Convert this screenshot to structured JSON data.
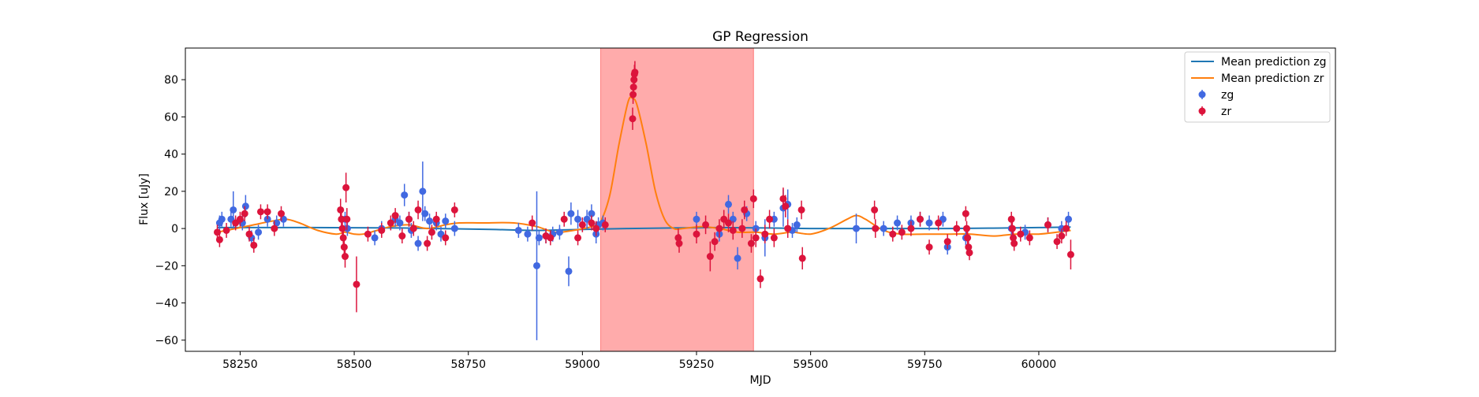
{
  "chart_data": {
    "type": "scatter",
    "title": "GP Regression",
    "xlabel": "MJD",
    "ylabel": "Flux [uJy]",
    "xlim": [
      58130,
      60650
    ],
    "ylim": [
      -66,
      97
    ],
    "xticks": [
      58250,
      58500,
      58750,
      59000,
      59250,
      59500,
      59750,
      60000
    ],
    "yticks": [
      -60,
      -40,
      -20,
      0,
      20,
      40,
      60,
      80
    ],
    "grid": false,
    "legend_position": "top-right",
    "shaded_region": {
      "x_start": 59040,
      "x_end": 59375,
      "color": "#ff0000",
      "alpha": 0.33
    },
    "lines": [
      {
        "name": "Mean prediction zg",
        "color": "#1f77b4",
        "x": [
          58200,
          58400,
          58600,
          58800,
          58900,
          59000,
          59100,
          59200,
          59300,
          59400,
          59500,
          59600,
          59700,
          59800,
          59900,
          60000,
          60070
        ],
        "y": [
          0.5,
          0.5,
          0.3,
          -0.5,
          -1.0,
          -0.5,
          0.0,
          0.3,
          0.5,
          0.3,
          0.0,
          0.0,
          0.0,
          0.0,
          0.2,
          0.5,
          0.8
        ]
      },
      {
        "name": "Mean prediction zr",
        "color": "#ff7f0e",
        "x": [
          58200,
          58240,
          58280,
          58320,
          58350,
          58380,
          58420,
          58460,
          58480,
          58500,
          58520,
          58550,
          58580,
          58620,
          58660,
          58700,
          58730,
          58780,
          58850,
          58900,
          58940,
          58980,
          59020,
          59040,
          59060,
          59080,
          59100,
          59110,
          59120,
          59140,
          59160,
          59180,
          59200,
          59220,
          59260,
          59300,
          59340,
          59380,
          59420,
          59460,
          59500,
          59540,
          59580,
          59600,
          59620,
          59660,
          59700,
          59750,
          59800,
          59850,
          59900,
          59950,
          60000,
          60040,
          60070
        ],
        "y": [
          -2,
          0,
          2,
          4,
          5,
          3,
          -1,
          -3,
          -2,
          -3,
          -3,
          -1,
          1,
          2,
          0,
          2,
          3,
          3,
          3,
          1,
          -2,
          -1,
          1,
          4,
          18,
          45,
          68,
          70,
          66,
          45,
          20,
          5,
          0,
          0,
          1,
          0,
          -2,
          -2,
          -3,
          -2,
          -3,
          0,
          5,
          7,
          5,
          -1,
          -3,
          -3,
          -3,
          -3,
          -4,
          -3,
          -3,
          -2,
          -1
        ]
      }
    ],
    "series": [
      {
        "name": "zg",
        "color": "#4169e1",
        "x": [
          58205,
          58210,
          58230,
          58235,
          58255,
          58262,
          58275,
          58290,
          58310,
          58330,
          58345,
          58480,
          58485,
          58545,
          58560,
          58590,
          58600,
          58610,
          58620,
          58625,
          58640,
          58650,
          58655,
          58665,
          58680,
          58690,
          58700,
          58720,
          58860,
          58880,
          58900,
          58905,
          58920,
          58935,
          58950,
          58970,
          58975,
          58990,
          59010,
          59020,
          59030,
          59035,
          59045,
          59250,
          59300,
          59320,
          59330,
          59340,
          59360,
          59380,
          59400,
          59420,
          59440,
          59450,
          59460,
          59470,
          59600,
          59660,
          59690,
          59720,
          59740,
          59760,
          59790,
          59800,
          59840,
          59940,
          59970,
          60020,
          60050,
          60065
        ],
        "y": [
          3,
          5,
          5,
          10,
          3,
          12,
          -5,
          -2,
          5,
          3,
          5,
          5,
          0,
          -5,
          0,
          5,
          3,
          18,
          5,
          -1,
          -8,
          20,
          8,
          4,
          3,
          -3,
          4,
          0,
          -1,
          -3,
          -20,
          -5,
          -4,
          -3,
          -2,
          -23,
          8,
          5,
          5,
          8,
          -3,
          2,
          3,
          5,
          -3,
          13,
          5,
          -16,
          8,
          0,
          -5,
          5,
          11,
          13,
          -1,
          2,
          0,
          0,
          3,
          3,
          5,
          3,
          5,
          -10,
          -5,
          0,
          -2,
          2,
          0,
          5
        ],
        "errors": [
          4,
          4,
          4,
          10,
          4,
          6,
          4,
          4,
          4,
          4,
          4,
          4,
          4,
          4,
          4,
          4,
          4,
          6,
          4,
          4,
          4,
          16,
          4,
          4,
          4,
          4,
          4,
          4,
          4,
          4,
          40,
          4,
          4,
          4,
          4,
          8,
          6,
          5,
          5,
          5,
          5,
          4,
          4,
          4,
          4,
          5,
          4,
          6,
          4,
          4,
          10,
          4,
          10,
          8,
          4,
          4,
          8,
          4,
          4,
          4,
          4,
          4,
          4,
          4,
          4,
          4,
          4,
          4,
          4,
          4
        ]
      },
      {
        "name": "zr",
        "color": "#dc143c",
        "x": [
          58200,
          58205,
          58220,
          58240,
          58250,
          58260,
          58270,
          58280,
          58295,
          58310,
          58325,
          58340,
          58470,
          58472,
          58474,
          58476,
          58478,
          58480,
          58482,
          58484,
          58505,
          58530,
          58560,
          58580,
          58590,
          58605,
          58620,
          58630,
          58640,
          58660,
          58670,
          58680,
          58700,
          58720,
          58890,
          58920,
          58930,
          58960,
          58990,
          59000,
          59020,
          59030,
          59050,
          59110,
          59111,
          59112,
          59113,
          59114,
          59115,
          59210,
          59212,
          59250,
          59270,
          59280,
          59290,
          59300,
          59310,
          59320,
          59330,
          59350,
          59355,
          59370,
          59375,
          59380,
          59390,
          59400,
          59410,
          59420,
          59440,
          59445,
          59450,
          59480,
          59482,
          59640,
          59642,
          59680,
          59700,
          59720,
          59740,
          59760,
          59780,
          59800,
          59820,
          59840,
          59842,
          59844,
          59846,
          59848,
          59940,
          59942,
          59944,
          59946,
          59960,
          59980,
          60020,
          60040,
          60050,
          60060,
          60070
        ],
        "y": [
          -2,
          -6,
          -1,
          3,
          5,
          8,
          -3,
          -9,
          9,
          9,
          0,
          8,
          10,
          5,
          0,
          -5,
          -10,
          -15,
          22,
          5,
          -30,
          -3,
          -1,
          3,
          7,
          -4,
          5,
          0,
          10,
          -8,
          -2,
          5,
          -5,
          10,
          3,
          -4,
          -5,
          5,
          -5,
          2,
          3,
          0,
          2,
          59,
          72,
          76,
          80,
          83,
          84,
          -5,
          -8,
          -3,
          2,
          -15,
          -7,
          0,
          5,
          3,
          -1,
          0,
          10,
          -8,
          16,
          -5,
          -27,
          -3,
          5,
          -5,
          16,
          12,
          0,
          10,
          -16,
          10,
          0,
          -3,
          -2,
          0,
          5,
          -10,
          3,
          -7,
          0,
          8,
          0,
          -5,
          -10,
          -13,
          5,
          0,
          -5,
          -8,
          -3,
          -5,
          2,
          -7,
          -4,
          0,
          -14
        ],
        "errors": [
          4,
          4,
          4,
          4,
          4,
          4,
          4,
          4,
          4,
          4,
          4,
          4,
          6,
          6,
          6,
          6,
          6,
          6,
          8,
          6,
          15,
          4,
          4,
          4,
          4,
          4,
          4,
          4,
          5,
          4,
          4,
          4,
          4,
          4,
          4,
          4,
          4,
          4,
          4,
          4,
          4,
          4,
          4,
          6,
          5,
          5,
          5,
          5,
          6,
          5,
          5,
          5,
          5,
          8,
          5,
          5,
          5,
          5,
          5,
          5,
          5,
          5,
          5,
          5,
          5,
          5,
          5,
          5,
          6,
          6,
          5,
          5,
          6,
          5,
          5,
          4,
          4,
          4,
          4,
          4,
          4,
          4,
          4,
          4,
          4,
          4,
          4,
          4,
          4,
          4,
          4,
          4,
          4,
          4,
          4,
          4,
          4,
          4,
          8
        ]
      }
    ]
  }
}
